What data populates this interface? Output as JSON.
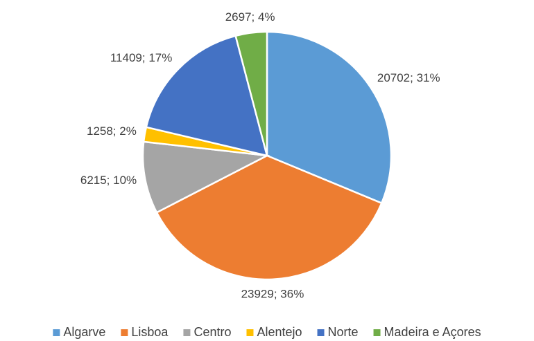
{
  "chart_data": {
    "type": "pie",
    "categories": [
      "Algarve",
      "Lisboa",
      "Centro",
      "Alentejo",
      "Norte",
      "Madeira e Açores"
    ],
    "values": [
      20702,
      23929,
      6215,
      1258,
      11409,
      2697
    ],
    "value_labels": [
      "20702; 31%",
      "23929; 36%",
      "6215; 10%",
      "1258; 2%",
      "11409; 17%",
      "2697; 4%"
    ],
    "colors": [
      "#5b9bd5",
      "#ed7d31",
      "#a5a5a5",
      "#ffc000",
      "#4472c4",
      "#70ad47"
    ],
    "legend": "bottom"
  }
}
